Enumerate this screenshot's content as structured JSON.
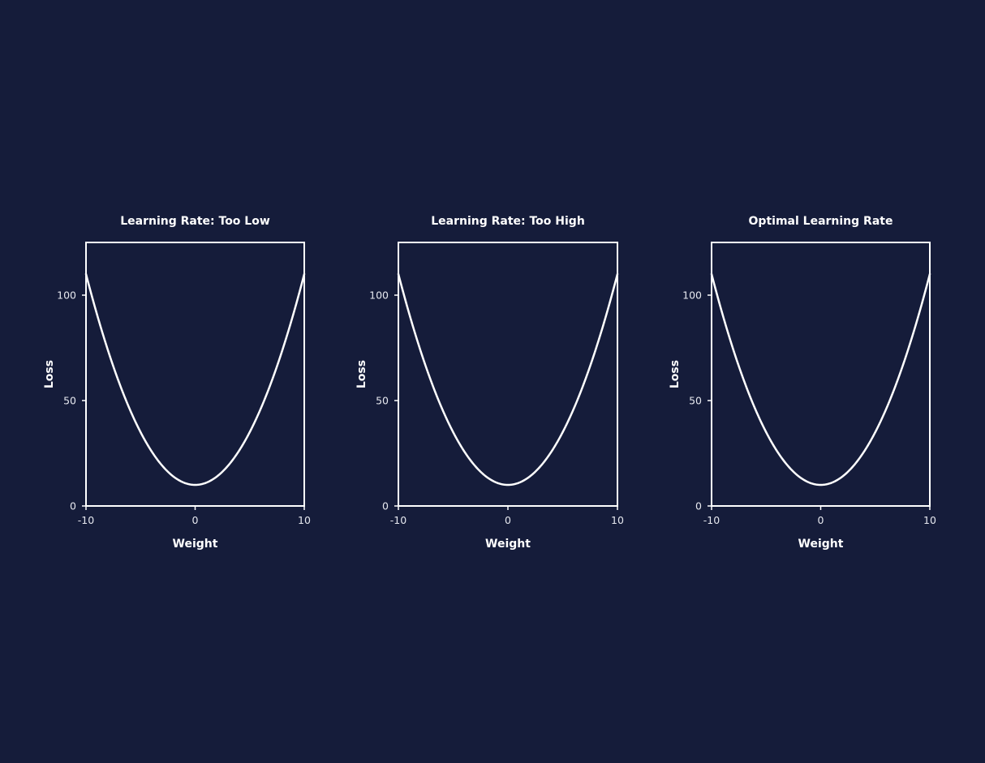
{
  "theme": {
    "background": "#151c3a",
    "line_color": "#ffffff",
    "axis_color": "#ffffff",
    "text_color": "#ffffff"
  },
  "chart_data": [
    {
      "type": "line",
      "title": "Learning Rate: Too Low",
      "xlabel": "Weight",
      "ylabel": "Loss",
      "xlim": [
        -10,
        10
      ],
      "ylim": [
        0,
        125
      ],
      "xticks": [
        -10,
        0,
        10
      ],
      "yticks": [
        0,
        50,
        100
      ],
      "grid": false,
      "legend": "none",
      "series": [
        {
          "x": [
            -10,
            -9,
            -8,
            -7,
            -6,
            -5,
            -4,
            -3,
            -2,
            -1,
            0,
            1,
            2,
            3,
            4,
            5,
            6,
            7,
            8,
            9,
            10
          ],
          "values": [
            110,
            91,
            74,
            59,
            46,
            35,
            26,
            19,
            14,
            11,
            10,
            11,
            14,
            19,
            26,
            35,
            46,
            59,
            74,
            91,
            110
          ]
        }
      ]
    },
    {
      "type": "line",
      "title": "Learning Rate: Too High",
      "xlabel": "Weight",
      "ylabel": "Loss",
      "xlim": [
        -10,
        10
      ],
      "ylim": [
        0,
        125
      ],
      "xticks": [
        -10,
        0,
        10
      ],
      "yticks": [
        0,
        50,
        100
      ],
      "grid": false,
      "legend": "none",
      "series": [
        {
          "x": [
            -10,
            -9,
            -8,
            -7,
            -6,
            -5,
            -4,
            -3,
            -2,
            -1,
            0,
            1,
            2,
            3,
            4,
            5,
            6,
            7,
            8,
            9,
            10
          ],
          "values": [
            110,
            91,
            74,
            59,
            46,
            35,
            26,
            19,
            14,
            11,
            10,
            11,
            14,
            19,
            26,
            35,
            46,
            59,
            74,
            91,
            110
          ]
        }
      ]
    },
    {
      "type": "line",
      "title": "Optimal Learning Rate",
      "xlabel": "Weight",
      "ylabel": "Loss",
      "xlim": [
        -10,
        10
      ],
      "ylim": [
        0,
        125
      ],
      "xticks": [
        -10,
        0,
        10
      ],
      "yticks": [
        0,
        50,
        100
      ],
      "grid": false,
      "legend": "none",
      "series": [
        {
          "x": [
            -10,
            -9,
            -8,
            -7,
            -6,
            -5,
            -4,
            -3,
            -2,
            -1,
            0,
            1,
            2,
            3,
            4,
            5,
            6,
            7,
            8,
            9,
            10
          ],
          "values": [
            110,
            91,
            74,
            59,
            46,
            35,
            26,
            19,
            14,
            11,
            10,
            11,
            14,
            19,
            26,
            35,
            46,
            59,
            74,
            91,
            110
          ]
        }
      ]
    }
  ]
}
